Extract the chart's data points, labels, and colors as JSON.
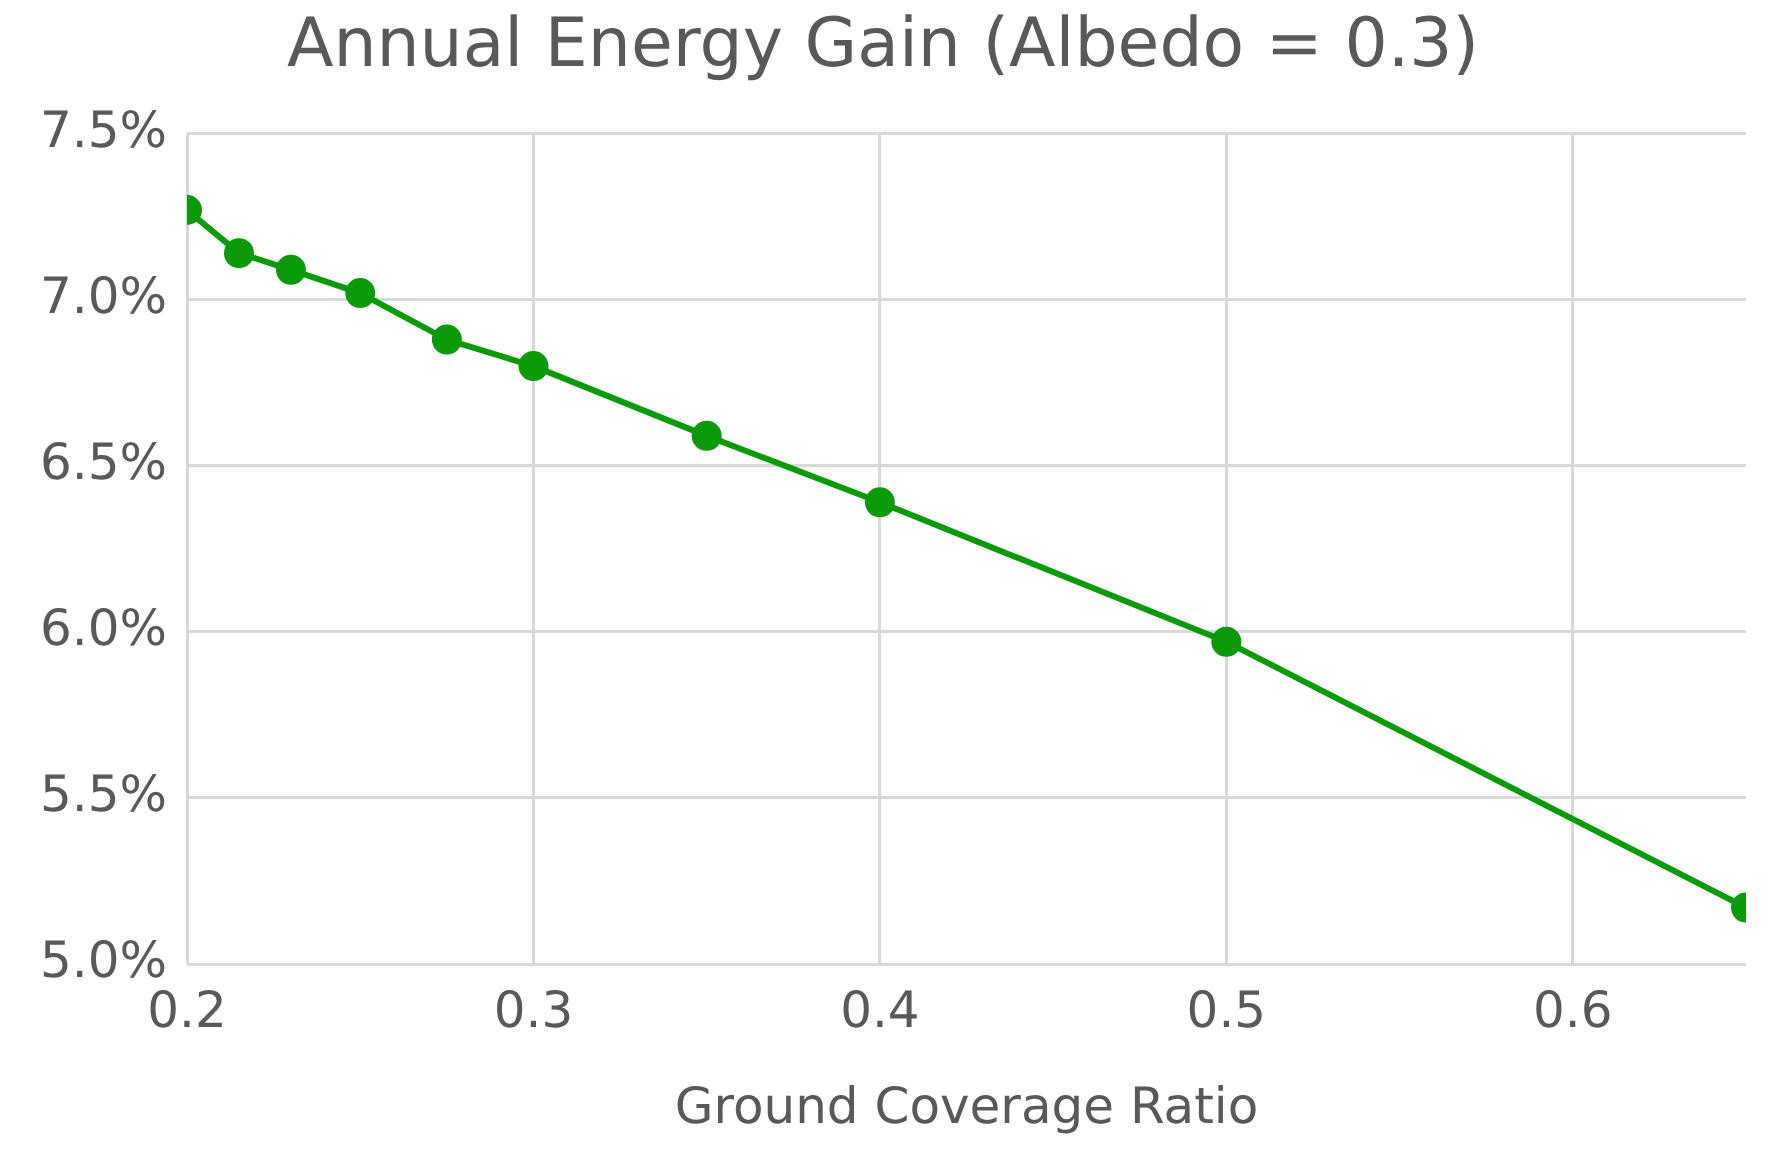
{
  "chart_data": {
    "type": "line",
    "title": "Annual Energy Gain (Albedo = 0.3)",
    "xlabel": "Ground Coverage Ratio",
    "x": [
      0.2,
      0.215,
      0.23,
      0.25,
      0.275,
      0.3,
      0.35,
      0.4,
      0.5,
      0.65
    ],
    "series": [
      {
        "color": "#0a9a0a",
        "values": [
          7.27,
          7.14,
          7.09,
          7.02,
          6.88,
          6.8,
          6.59,
          6.39,
          5.97,
          5.17
        ]
      }
    ],
    "xlim": [
      0.2,
      0.65
    ],
    "xticks": [
      0.2,
      0.3,
      0.4,
      0.5,
      0.6
    ],
    "ylim": [
      5,
      7.5
    ],
    "yticks": [
      {
        "value": 5,
        "label": "5.0%"
      },
      {
        "value": 5.5,
        "label": "5.5%"
      },
      {
        "value": 6,
        "label": "6.0%"
      },
      {
        "value": 6.5,
        "label": "6.5%"
      },
      {
        "value": 7,
        "label": "7.0%"
      },
      {
        "value": 7.5,
        "label": "7.5%"
      }
    ],
    "grid": true,
    "legend": false,
    "marker": "circle",
    "line_style": "solid"
  }
}
